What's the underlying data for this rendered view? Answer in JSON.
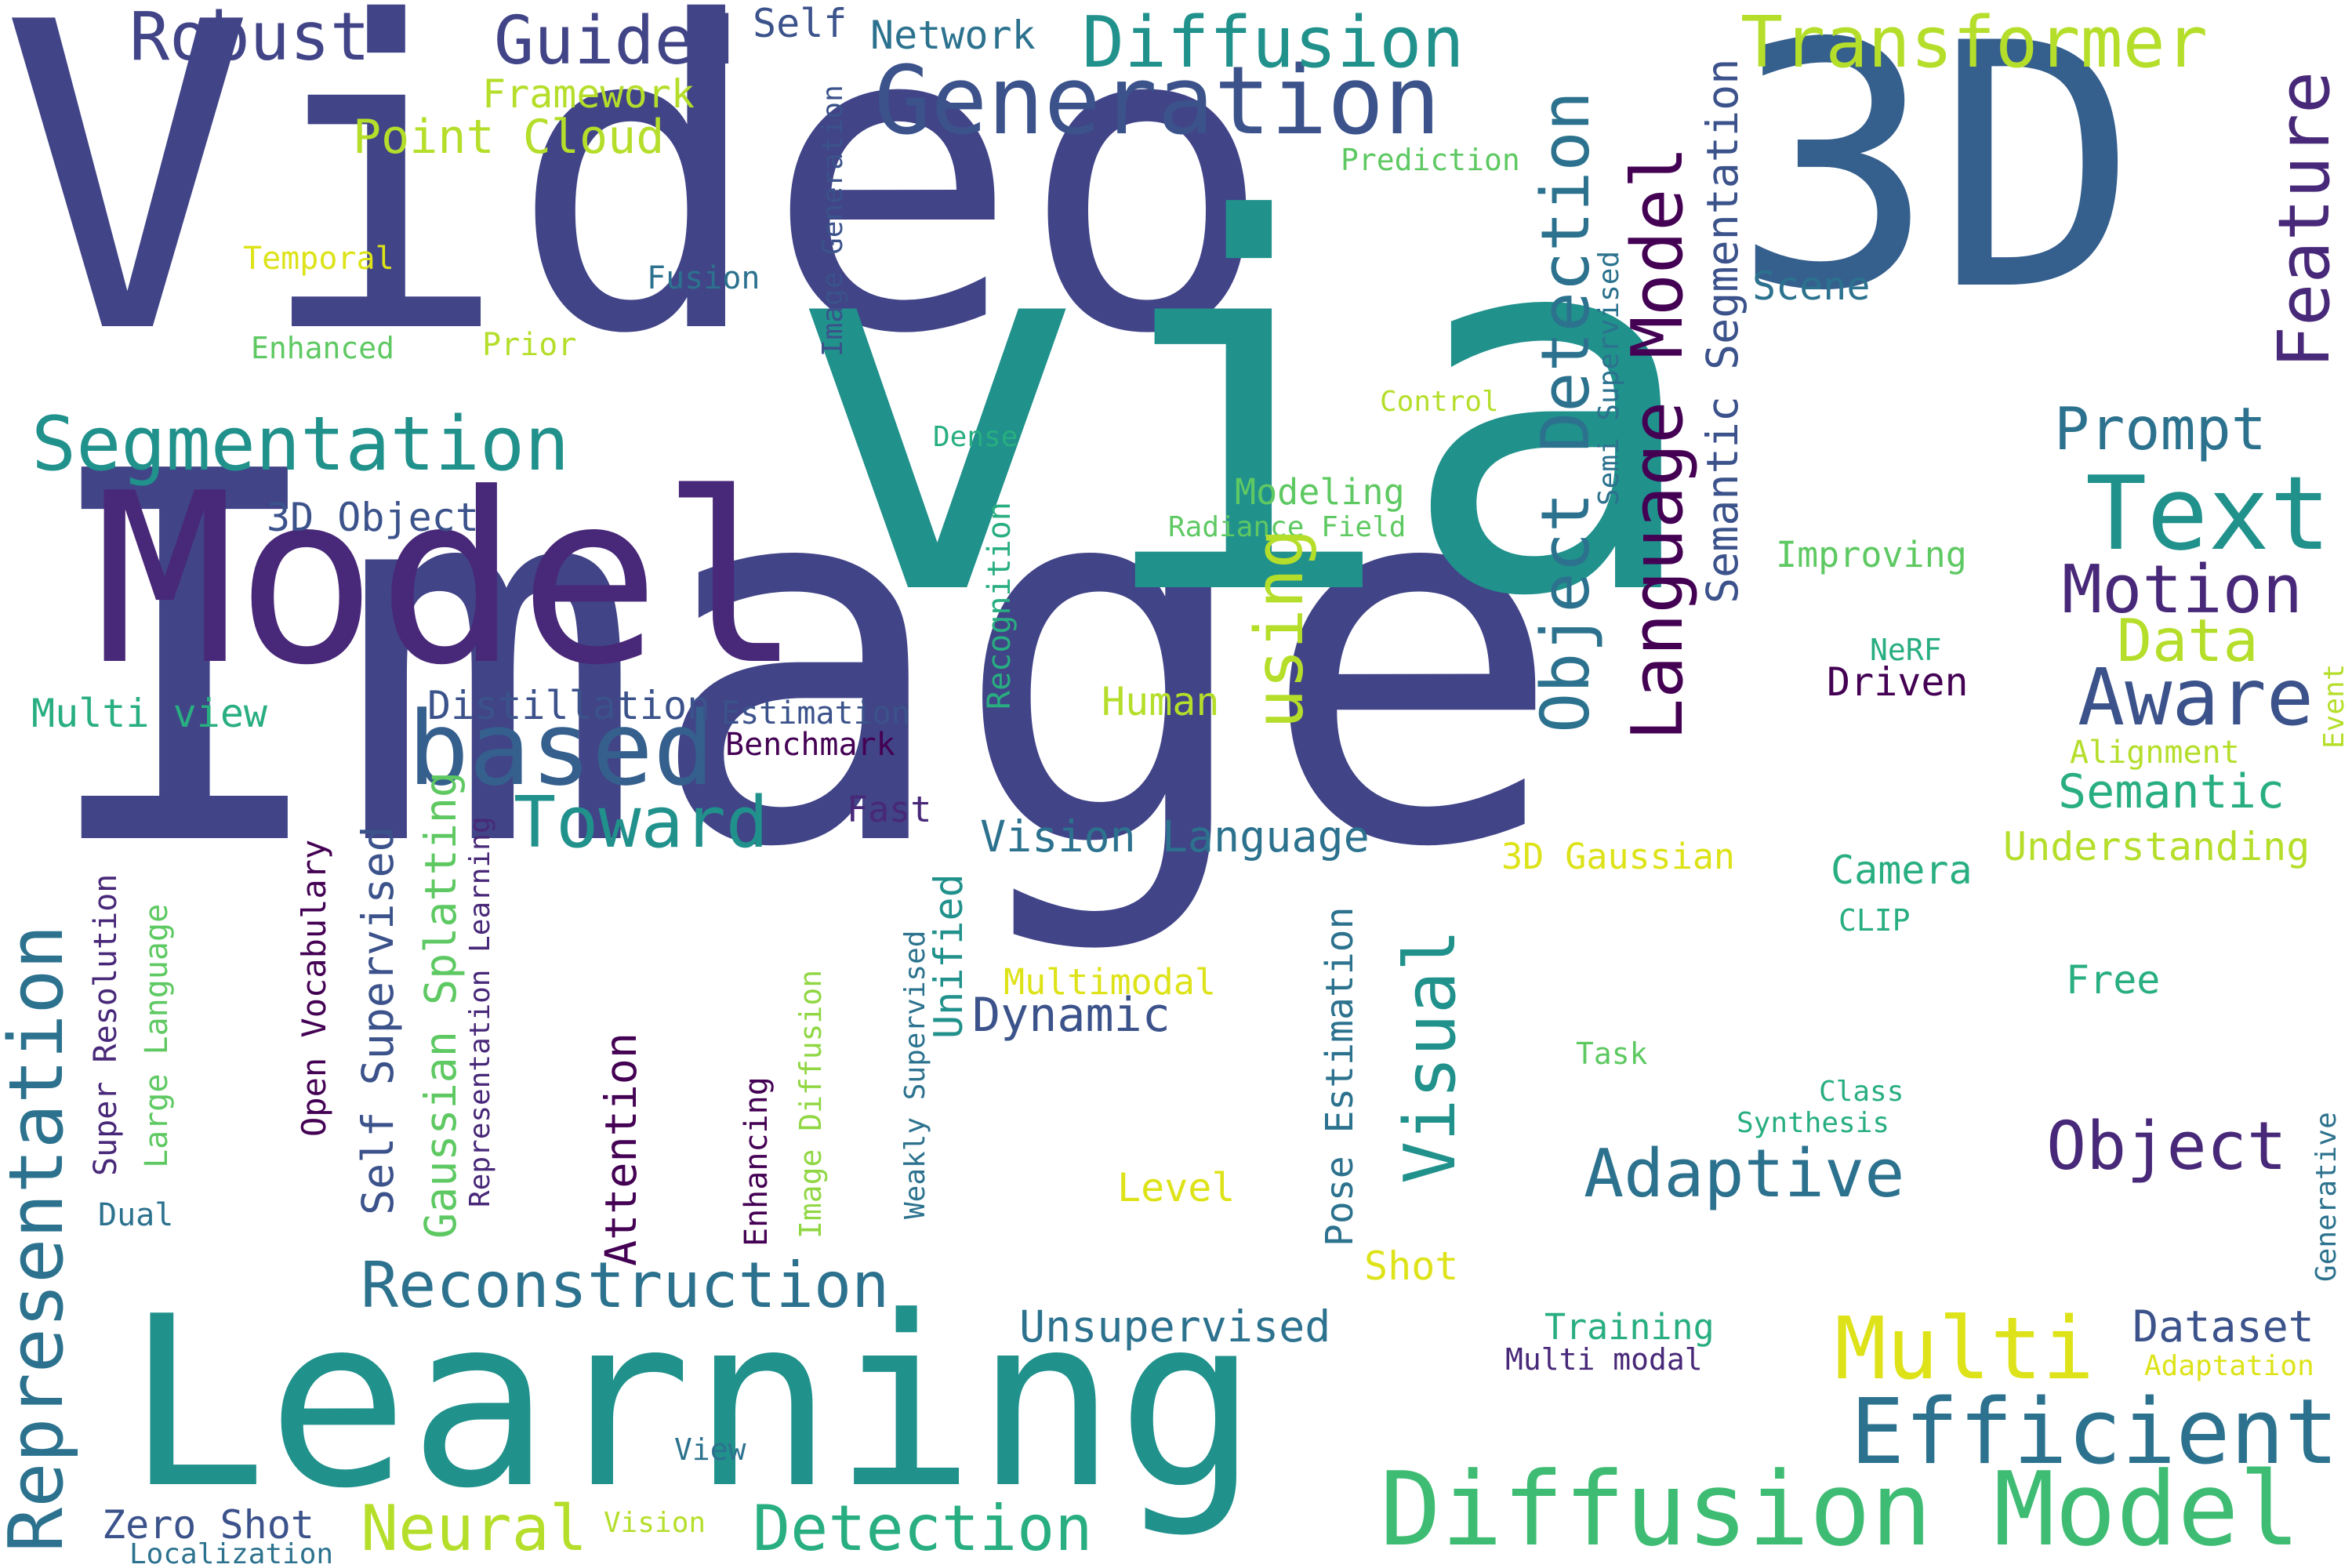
{
  "palette": {
    "indigo": "#414487",
    "slate": "#3b528b",
    "blue": "#355f8d",
    "steel": "#2c728e",
    "teal": "#21918c",
    "sea": "#28ae80",
    "green": "#3fbc73",
    "leaf": "#5ec962",
    "lime": "#90d743",
    "chartreuse": "#b5de2b",
    "yellow": "#dde318",
    "purple": "#440154",
    "plum": "#482878"
  },
  "words": [
    {
      "text": "Image",
      "color": "indigo"
    },
    {
      "text": "Video",
      "color": "indigo"
    },
    {
      "text": "via",
      "color": "teal"
    },
    {
      "text": "3D",
      "color": "blue"
    },
    {
      "text": "Learning",
      "color": "teal"
    },
    {
      "text": "Model",
      "color": "plum"
    },
    {
      "text": "Generation",
      "color": "slate"
    },
    {
      "text": "Segmentation",
      "color": "teal"
    },
    {
      "text": "Diffusion Model",
      "color": "green"
    },
    {
      "text": "Representation",
      "color": "steel"
    },
    {
      "text": "based",
      "color": "blue"
    },
    {
      "text": "Object Detection",
      "color": "steel"
    },
    {
      "text": "Language Model",
      "color": "purple"
    },
    {
      "text": "Text",
      "color": "teal"
    },
    {
      "text": "Transformer",
      "color": "chartreuse"
    },
    {
      "text": "Diffusion",
      "color": "teal"
    },
    {
      "text": "Robust",
      "color": "indigo"
    },
    {
      "text": "Guided",
      "color": "indigo"
    },
    {
      "text": "Feature",
      "color": "plum"
    },
    {
      "text": "Efficient",
      "color": "steel"
    },
    {
      "text": "Multi",
      "color": "yellow"
    },
    {
      "text": "Reconstruction",
      "color": "steel"
    },
    {
      "text": "Toward",
      "color": "teal"
    },
    {
      "text": "Visual",
      "color": "teal"
    },
    {
      "text": "Aware",
      "color": "slate"
    },
    {
      "text": "Motion",
      "color": "plum"
    },
    {
      "text": "Adaptive",
      "color": "steel"
    },
    {
      "text": "Object",
      "color": "plum"
    },
    {
      "text": "Detection",
      "color": "sea"
    },
    {
      "text": "Neural",
      "color": "chartreuse"
    },
    {
      "text": "using",
      "color": "chartreuse"
    },
    {
      "text": "Prompt",
      "color": "steel"
    },
    {
      "text": "Semantic Segmentation",
      "color": "slate"
    },
    {
      "text": "Self Supervised",
      "color": "slate"
    },
    {
      "text": "Gaussian Splatting",
      "color": "leaf"
    },
    {
      "text": "Vision Language",
      "color": "steel"
    },
    {
      "text": "Data",
      "color": "chartreuse"
    },
    {
      "text": "Semantic",
      "color": "sea"
    },
    {
      "text": "Unsupervised",
      "color": "steel"
    },
    {
      "text": "Dataset",
      "color": "slate"
    },
    {
      "text": "Dynamic",
      "color": "slate"
    },
    {
      "text": "Attention",
      "color": "purple"
    },
    {
      "text": "Unified",
      "color": "teal"
    },
    {
      "text": "Point Cloud",
      "color": "chartreuse"
    },
    {
      "text": "Framework",
      "color": "chartreuse"
    },
    {
      "text": "Network",
      "color": "steel"
    },
    {
      "text": "Self",
      "color": "slate"
    },
    {
      "text": "Multi view",
      "color": "sea"
    },
    {
      "text": "Distillation",
      "color": "slate"
    },
    {
      "text": "3D Object",
      "color": "slate"
    },
    {
      "text": "Human",
      "color": "chartreuse"
    },
    {
      "text": "Driven",
      "color": "purple"
    },
    {
      "text": "Understanding",
      "color": "chartreuse"
    },
    {
      "text": "Camera",
      "color": "sea"
    },
    {
      "text": "3D Gaussian",
      "color": "yellow"
    },
    {
      "text": "Training",
      "color": "sea"
    },
    {
      "text": "Zero Shot",
      "color": "slate"
    },
    {
      "text": "Scene",
      "color": "steel"
    },
    {
      "text": "Improving",
      "color": "leaf"
    },
    {
      "text": "Modeling",
      "color": "leaf"
    },
    {
      "text": "Free",
      "color": "sea"
    },
    {
      "text": "Multimodal",
      "color": "yellow"
    },
    {
      "text": "Level",
      "color": "yellow"
    },
    {
      "text": "Shot",
      "color": "yellow"
    },
    {
      "text": "Pose Estimation",
      "color": "steel"
    },
    {
      "text": "Estimation",
      "color": "slate"
    },
    {
      "text": "Benchmark",
      "color": "purple"
    },
    {
      "text": "Fast",
      "color": "plum"
    },
    {
      "text": "Temporal",
      "color": "yellow"
    },
    {
      "text": "Fusion",
      "color": "steel"
    },
    {
      "text": "Enhanced",
      "color": "leaf"
    },
    {
      "text": "Prior",
      "color": "chartreuse"
    },
    {
      "text": "Prediction",
      "color": "leaf"
    },
    {
      "text": "Control",
      "color": "chartreuse"
    },
    {
      "text": "Dense",
      "color": "sea"
    },
    {
      "text": "Radiance Field",
      "color": "leaf"
    },
    {
      "text": "Recognition",
      "color": "sea"
    },
    {
      "text": "Image Generation",
      "color": "slate"
    },
    {
      "text": "Semi Supervised",
      "color": "steel"
    },
    {
      "text": "NeRF",
      "color": "sea"
    },
    {
      "text": "Alignment",
      "color": "chartreuse"
    },
    {
      "text": "Event",
      "color": "chartreuse"
    },
    {
      "text": "CLIP",
      "color": "sea"
    },
    {
      "text": "Task",
      "color": "leaf"
    },
    {
      "text": "Class",
      "color": "sea"
    },
    {
      "text": "Synthesis",
      "color": "sea"
    },
    {
      "text": "Generative",
      "color": "steel"
    },
    {
      "text": "Multi modal",
      "color": "plum"
    },
    {
      "text": "Adaptation",
      "color": "yellow"
    },
    {
      "text": "Open Vocabulary",
      "color": "purple"
    },
    {
      "text": "Representation Learning",
      "color": "plum"
    },
    {
      "text": "Large Language",
      "color": "leaf"
    },
    {
      "text": "Super Resolution",
      "color": "plum"
    },
    {
      "text": "Dual",
      "color": "steel"
    },
    {
      "text": "Weakly Supervised",
      "color": "steel"
    },
    {
      "text": "Image Diffusion",
      "color": "lime"
    },
    {
      "text": "Enhancing",
      "color": "purple"
    },
    {
      "text": "View",
      "color": "steel"
    },
    {
      "text": "Vision",
      "color": "chartreuse"
    },
    {
      "text": "Localization",
      "color": "steel"
    }
  ]
}
